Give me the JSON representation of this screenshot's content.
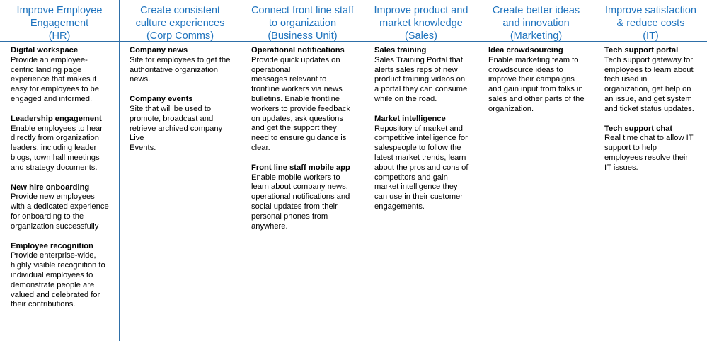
{
  "columns": [
    {
      "heading": "Improve Employee\nEngagement\n(HR)",
      "items": [
        {
          "title": "Digital workspace",
          "desc": "Provide an employee-\ncentric landing page\nexperience that makes it\neasy for employees to be\nengaged and informed."
        },
        {
          "title": "Leadership engagement",
          "desc": "Enable employees to hear\ndirectly from organization\nleaders, including leader\nblogs, town hall meetings\nand strategy documents."
        },
        {
          "title": "New hire onboarding",
          "desc": "Provide new employees\nwith a dedicated experience\nfor onboarding to the\norganization successfully"
        },
        {
          "title": "Employee recognition",
          "desc": "Provide enterprise-wide,\nhighly visible recognition to\nindividual employees to\ndemonstrate people are\nvalued and celebrated for\ntheir contributions."
        }
      ]
    },
    {
      "heading": "Create consistent\nculture experiences\n(Corp Comms)",
      "items": [
        {
          "title": "Company news",
          "desc": "Site for employees to get the\nauthoritative organization\nnews."
        },
        {
          "title": "Company events",
          "desc": "Site that will be used to\npromote, broadcast and\nretrieve archived company Live\nEvents."
        }
      ]
    },
    {
      "heading": "Connect front line staff\nto organization\n(Business Unit)",
      "items": [
        {
          "title": "Operational notifications",
          "desc": "Provide quick updates on\noperational\nmessages relevant to\nfrontline workers via news\nbulletins. Enable frontline\nworkers to provide feedback\non updates, ask questions\nand get the support they\nneed to ensure guidance is\nclear."
        },
        {
          "title": "Front line staff mobile app",
          "desc": "Enable mobile workers to\nlearn about company news,\noperational notifications and\nsocial updates from their\npersonal phones from\nanywhere."
        }
      ]
    },
    {
      "heading": "Improve product and\nmarket knowledge\n(Sales)",
      "items": [
        {
          "title": "Sales training",
          "desc": "Sales Training Portal that\nalerts sales reps of new\nproduct training videos on\na portal they can consume\nwhile on the road."
        },
        {
          "title": "Market intelligence",
          "desc": "Repository of market and\ncompetitive intelligence for\nsalespeople to follow the\nlatest market trends, learn\nabout the pros and cons of\ncompetitors and gain\nmarket intelligence they\ncan use in their customer\nengagements."
        }
      ]
    },
    {
      "heading": "Create better ideas\nand innovation\n(Marketing)",
      "items": [
        {
          "title": "Idea crowdsourcing",
          "desc": "Enable marketing team to\ncrowdsource ideas to\nimprove their campaigns\nand gain input from folks in\nsales and other parts of the\norganization."
        }
      ]
    },
    {
      "heading": "Improve satisfaction\n& reduce costs\n(IT)",
      "items": [
        {
          "title": "Tech support portal",
          "desc": "Tech support gateway for\nemployees to learn about\ntech used in\norganization, get help on\nan issue, and get system\nand ticket status updates."
        },
        {
          "title": "Tech support chat",
          "desc": "Real time chat to allow IT\nsupport to help\nemployees resolve their\nIT issues."
        }
      ]
    }
  ]
}
